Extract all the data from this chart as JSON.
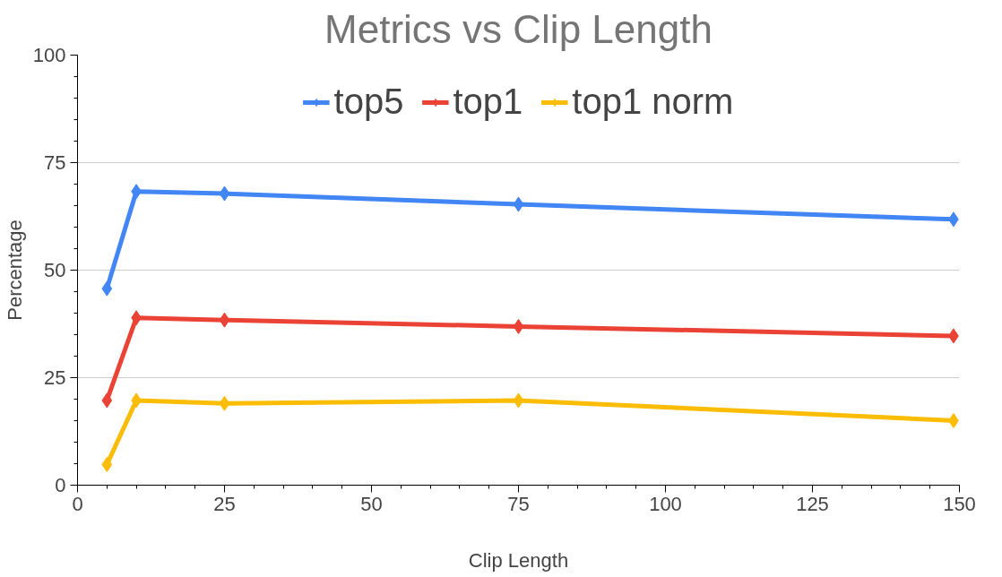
{
  "chart_data": {
    "type": "line",
    "title": "Metrics vs Clip Length",
    "xlabel": "Clip Length",
    "ylabel": "Percentage",
    "x": [
      5,
      10,
      25,
      75,
      149
    ],
    "series": [
      {
        "name": "top5",
        "color": "#4285f4",
        "values": [
          45.7,
          68.3,
          67.8,
          65.3,
          61.8
        ]
      },
      {
        "name": "top1",
        "color": "#ea4335",
        "values": [
          19.7,
          38.9,
          38.4,
          36.9,
          34.7
        ]
      },
      {
        "name": "top1 norm",
        "color": "#fbbc04",
        "values": [
          4.8,
          19.7,
          19.0,
          19.7,
          15.0
        ]
      }
    ],
    "xlim": [
      0,
      150
    ],
    "xticks": [
      0,
      25,
      50,
      75,
      100,
      125,
      150
    ],
    "ylim": [
      0,
      100
    ],
    "yticks": [
      0,
      25,
      50,
      75,
      100
    ],
    "grid": "y",
    "legend": "top",
    "marker": "diamond",
    "line_style": "solid"
  }
}
